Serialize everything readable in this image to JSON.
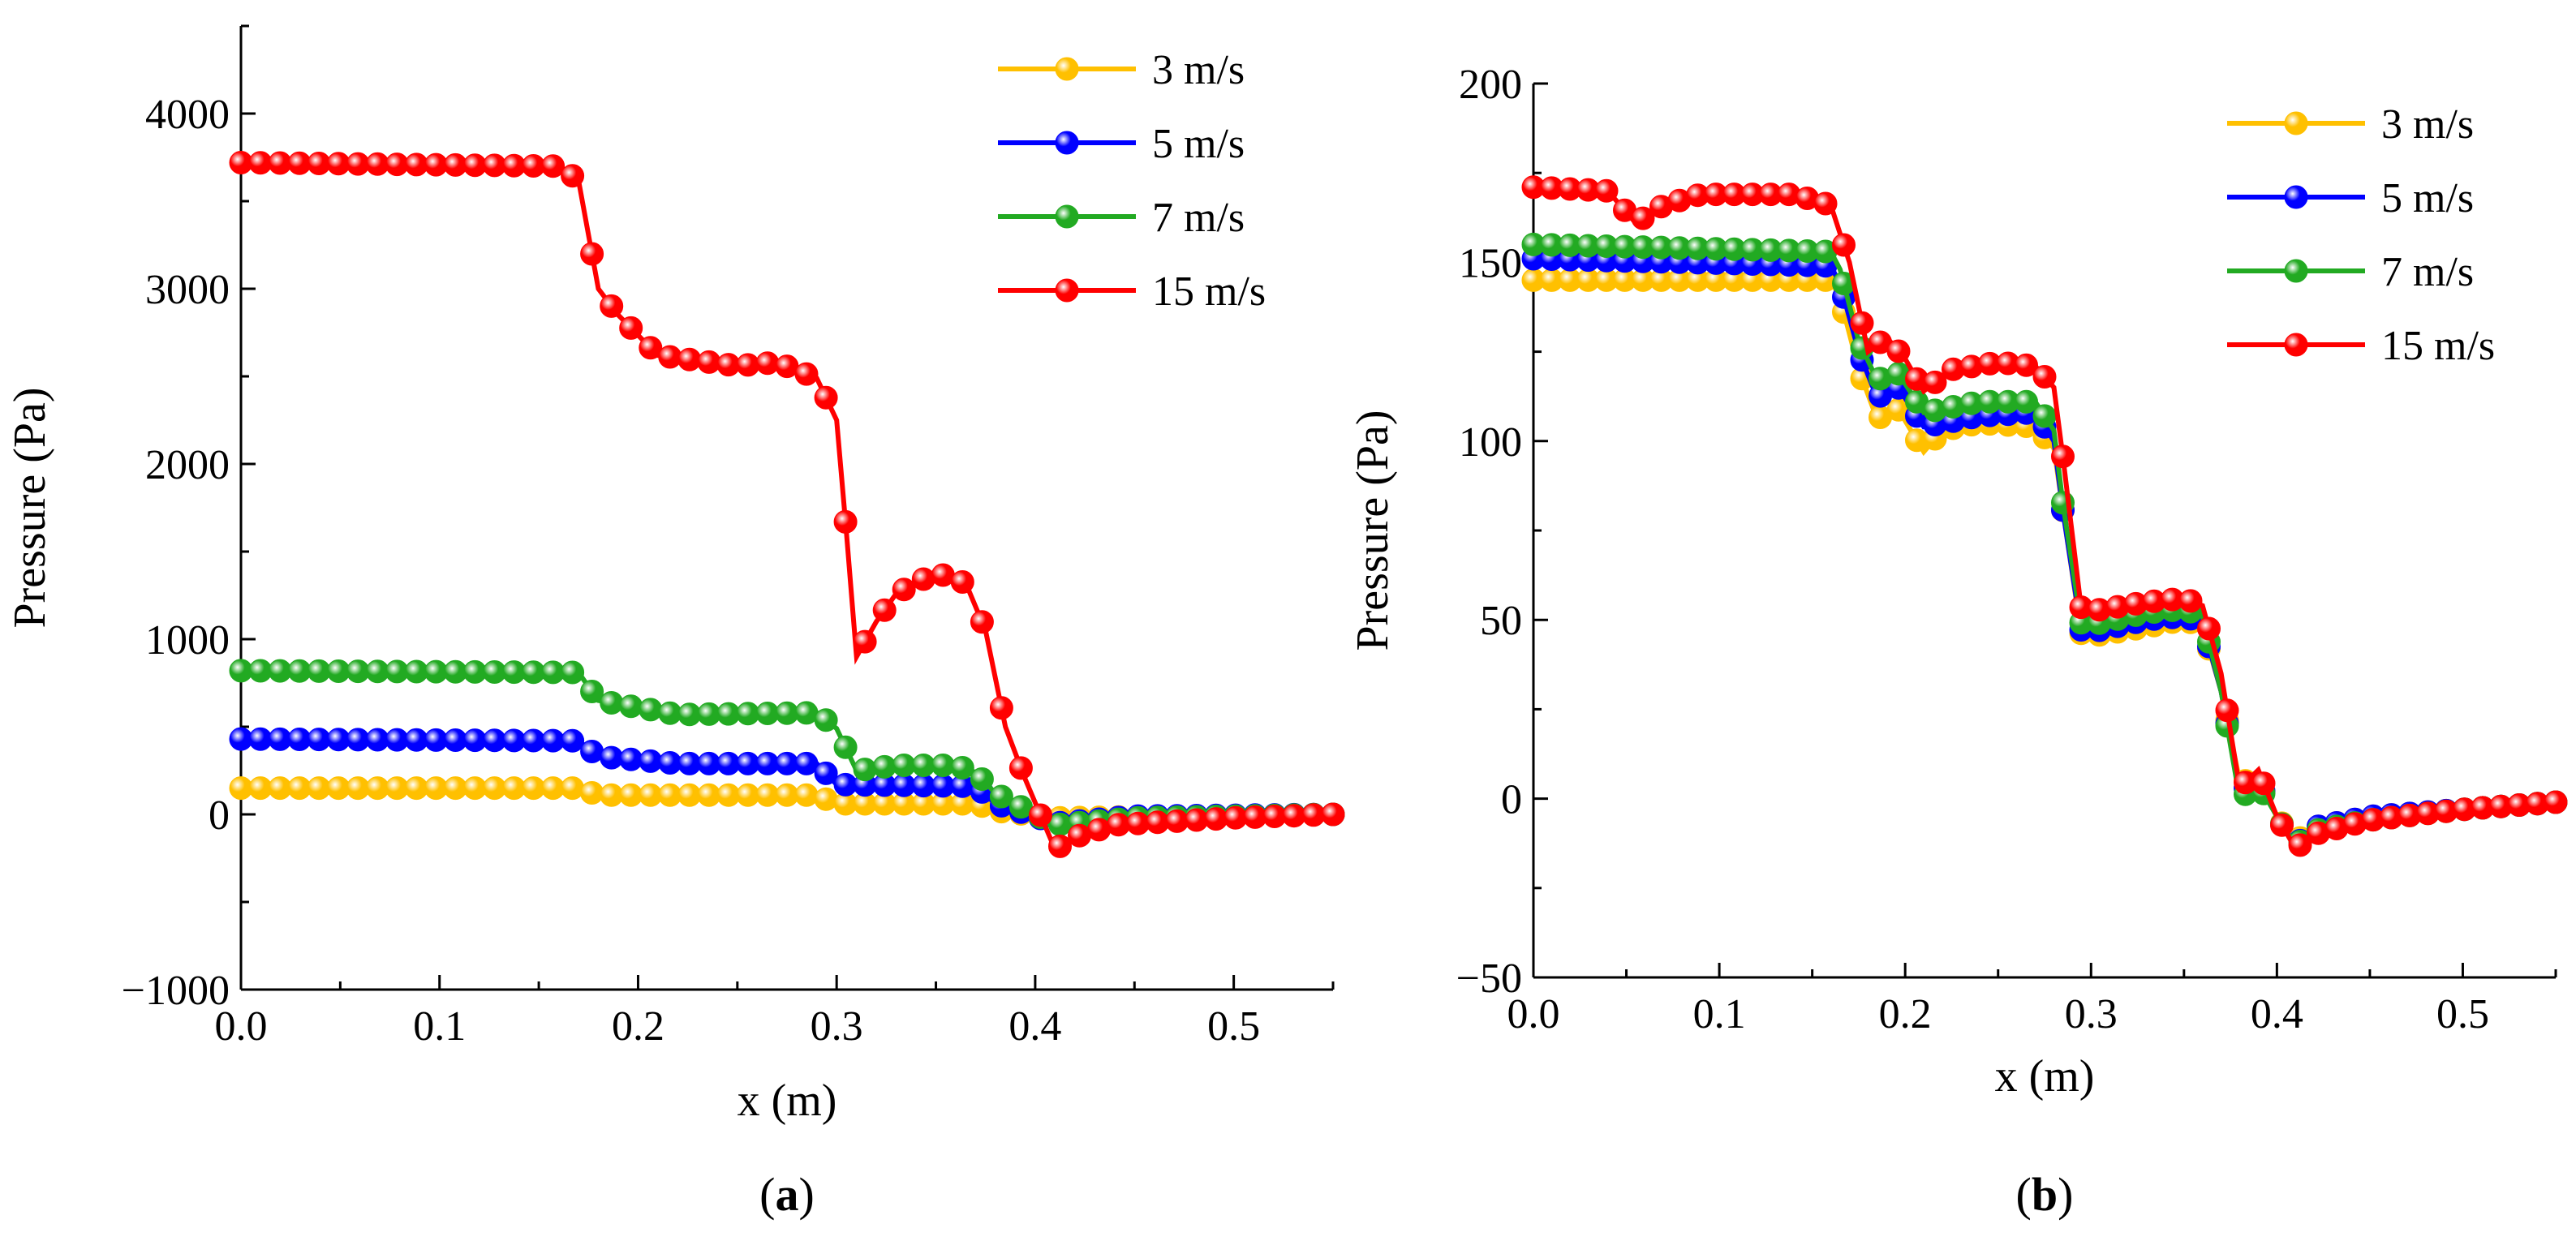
{
  "chart_data": [
    {
      "type": "line",
      "panel_label": "a",
      "xlabel": "x (m)",
      "ylabel": "Pressure (Pa)",
      "xlim": [
        0.0,
        0.55
      ],
      "ylim": [
        -1000,
        4500
      ],
      "xticks": [
        0.0,
        0.1,
        0.2,
        0.3,
        0.4,
        0.5
      ],
      "xtick_labels": [
        "0.0",
        "0.1",
        "0.2",
        "0.3",
        "0.4",
        "0.5"
      ],
      "yticks": [
        -1000,
        0,
        1000,
        2000,
        3000,
        4000
      ],
      "ytick_labels": [
        "−1000",
        "0",
        "1000",
        "2000",
        "3000",
        "4000"
      ],
      "legend_position": "top-right",
      "series": [
        {
          "name": "3 m/s",
          "color": "#FFC000",
          "points": [
            [
              0,
              150
            ],
            [
              0.17,
              150
            ],
            [
              0.18,
              110
            ],
            [
              0.29,
              110
            ],
            [
              0.3,
              60
            ],
            [
              0.37,
              60
            ],
            [
              0.38,
              20
            ],
            [
              0.41,
              -20
            ],
            [
              0.55,
              0
            ]
          ]
        },
        {
          "name": "5 m/s",
          "color": "#0000FF",
          "points": [
            [
              0,
              430
            ],
            [
              0.17,
              420
            ],
            [
              0.18,
              330
            ],
            [
              0.22,
              290
            ],
            [
              0.29,
              290
            ],
            [
              0.3,
              170
            ],
            [
              0.37,
              160
            ],
            [
              0.38,
              60
            ],
            [
              0.41,
              -50
            ],
            [
              0.45,
              -10
            ],
            [
              0.55,
              0
            ]
          ]
        },
        {
          "name": "7 m/s",
          "color": "#22AA22",
          "points": [
            [
              0,
              820
            ],
            [
              0.17,
              810
            ],
            [
              0.18,
              650
            ],
            [
              0.22,
              570
            ],
            [
              0.29,
              580
            ],
            [
              0.3,
              490
            ],
            [
              0.31,
              250
            ],
            [
              0.33,
              280
            ],
            [
              0.36,
              280
            ],
            [
              0.37,
              240
            ],
            [
              0.38,
              120
            ],
            [
              0.41,
              -60
            ],
            [
              0.45,
              -20
            ],
            [
              0.55,
              0
            ]
          ]
        },
        {
          "name": "15 m/s",
          "color": "#FF0000",
          "points": [
            [
              0,
              3720
            ],
            [
              0.16,
              3700
            ],
            [
              0.17,
              3620
            ],
            [
              0.18,
              3000
            ],
            [
              0.19,
              2850
            ],
            [
              0.21,
              2620
            ],
            [
              0.25,
              2560
            ],
            [
              0.27,
              2580
            ],
            [
              0.29,
              2490
            ],
            [
              0.3,
              2250
            ],
            [
              0.305,
              1600
            ],
            [
              0.31,
              900
            ],
            [
              0.32,
              1100
            ],
            [
              0.33,
              1260
            ],
            [
              0.35,
              1380
            ],
            [
              0.365,
              1320
            ],
            [
              0.375,
              1050
            ],
            [
              0.385,
              500
            ],
            [
              0.395,
              200
            ],
            [
              0.41,
              -200
            ],
            [
              0.42,
              -130
            ],
            [
              0.44,
              -60
            ],
            [
              0.5,
              -20
            ],
            [
              0.55,
              0
            ]
          ]
        }
      ]
    },
    {
      "type": "line",
      "panel_label": "b",
      "xlabel": "x (m)",
      "ylabel": "Pressure (Pa)",
      "xlim": [
        0.0,
        0.55
      ],
      "ylim": [
        -50,
        200
      ],
      "xticks": [
        0.0,
        0.1,
        0.2,
        0.3,
        0.4,
        0.5
      ],
      "xtick_labels": [
        "0.0",
        "0.1",
        "0.2",
        "0.3",
        "0.4",
        "0.5"
      ],
      "yticks": [
        -50,
        0,
        50,
        100,
        150,
        200
      ],
      "ytick_labels": [
        "−50",
        "0",
        "50",
        "100",
        "150",
        "200"
      ],
      "legend_position": "top-right",
      "series": [
        {
          "name": "3 m/s",
          "color": "#FFC000",
          "points": [
            [
              0,
              145
            ],
            [
              0.16,
              145
            ],
            [
              0.165,
              140
            ],
            [
              0.175,
              120
            ],
            [
              0.185,
              106
            ],
            [
              0.195,
              110
            ],
            [
              0.21,
              97
            ],
            [
              0.22,
              103
            ],
            [
              0.24,
              105
            ],
            [
              0.27,
              104
            ],
            [
              0.28,
              98
            ],
            [
              0.285,
              80
            ],
            [
              0.295,
              45
            ],
            [
              0.33,
              48
            ],
            [
              0.35,
              50
            ],
            [
              0.36,
              48
            ],
            [
              0.37,
              30
            ],
            [
              0.38,
              5
            ],
            [
              0.39,
              5
            ],
            [
              0.4,
              -5
            ],
            [
              0.41,
              -12
            ],
            [
              0.42,
              -8
            ],
            [
              0.45,
              -5
            ],
            [
              0.5,
              -3
            ],
            [
              0.55,
              -1
            ]
          ]
        },
        {
          "name": "5 m/s",
          "color": "#0000FF",
          "points": [
            [
              0,
              151
            ],
            [
              0.16,
              149
            ],
            [
              0.165,
              144
            ],
            [
              0.175,
              125
            ],
            [
              0.185,
              112
            ],
            [
              0.195,
              116
            ],
            [
              0.21,
              104
            ],
            [
              0.22,
              105
            ],
            [
              0.24,
              107
            ],
            [
              0.27,
              108
            ],
            [
              0.28,
              100
            ],
            [
              0.285,
              80
            ],
            [
              0.295,
              46
            ],
            [
              0.33,
              50
            ],
            [
              0.35,
              51
            ],
            [
              0.36,
              49
            ],
            [
              0.37,
              30
            ],
            [
              0.38,
              2
            ],
            [
              0.39,
              5
            ],
            [
              0.4,
              -5
            ],
            [
              0.41,
              -13
            ],
            [
              0.42,
              -8
            ],
            [
              0.45,
              -5
            ],
            [
              0.5,
              -3
            ],
            [
              0.55,
              -1
            ]
          ]
        },
        {
          "name": "7 m/s",
          "color": "#22AA22",
          "points": [
            [
              0,
              155
            ],
            [
              0.16,
              153
            ],
            [
              0.165,
              148
            ],
            [
              0.175,
              128
            ],
            [
              0.185,
              117
            ],
            [
              0.195,
              120
            ],
            [
              0.21,
              108
            ],
            [
              0.22,
              109
            ],
            [
              0.24,
              111
            ],
            [
              0.27,
              111
            ],
            [
              0.28,
              103
            ],
            [
              0.285,
              82
            ],
            [
              0.295,
              48
            ],
            [
              0.33,
              52
            ],
            [
              0.35,
              53
            ],
            [
              0.36,
              51
            ],
            [
              0.37,
              30
            ],
            [
              0.38,
              0
            ],
            [
              0.39,
              4
            ],
            [
              0.4,
              -5
            ],
            [
              0.41,
              -13
            ],
            [
              0.42,
              -9
            ],
            [
              0.45,
              -6
            ],
            [
              0.5,
              -3
            ],
            [
              0.55,
              -1
            ]
          ]
        },
        {
          "name": "15 m/s",
          "color": "#FF0000",
          "points": [
            [
              0,
              171
            ],
            [
              0.04,
              170
            ],
            [
              0.055,
              161
            ],
            [
              0.07,
              166
            ],
            [
              0.09,
              169
            ],
            [
              0.14,
              169
            ],
            [
              0.16,
              166
            ],
            [
              0.17,
              150
            ],
            [
              0.18,
              125
            ],
            [
              0.19,
              129
            ],
            [
              0.2,
              123
            ],
            [
              0.21,
              114
            ],
            [
              0.225,
              120
            ],
            [
              0.25,
              122
            ],
            [
              0.27,
              121
            ],
            [
              0.28,
              115
            ],
            [
              0.285,
              95
            ],
            [
              0.295,
              52
            ],
            [
              0.33,
              55
            ],
            [
              0.35,
              56
            ],
            [
              0.36,
              54
            ],
            [
              0.37,
              35
            ],
            [
              0.38,
              3
            ],
            [
              0.39,
              8
            ],
            [
              0.4,
              -5
            ],
            [
              0.41,
              -14
            ],
            [
              0.42,
              -10
            ],
            [
              0.45,
              -6
            ],
            [
              0.5,
              -3
            ],
            [
              0.55,
              -1
            ]
          ]
        }
      ]
    }
  ]
}
